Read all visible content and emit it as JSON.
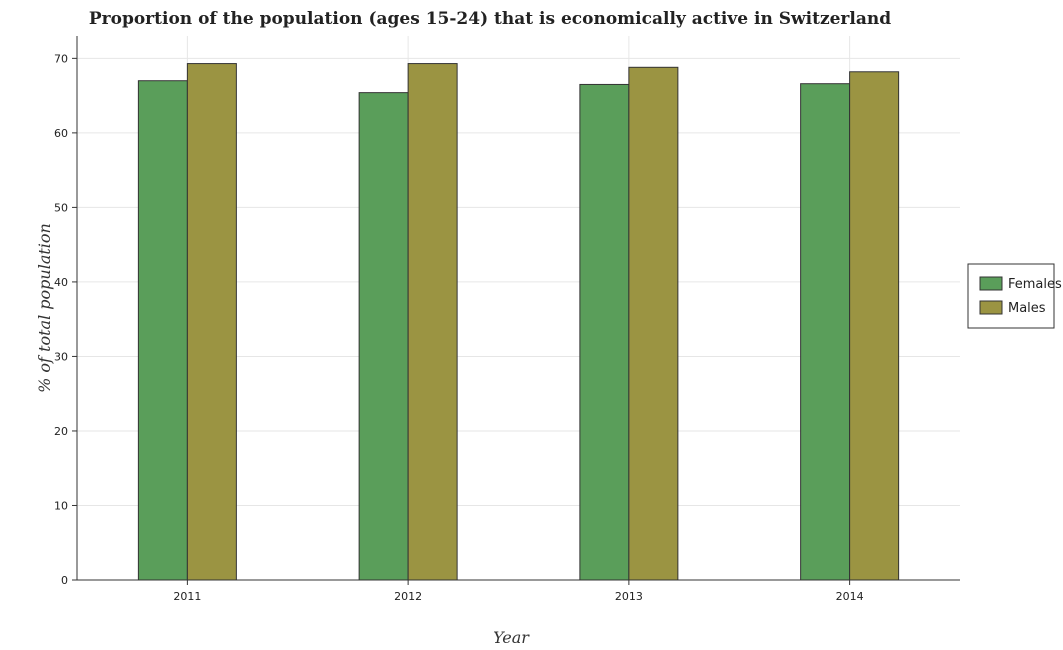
{
  "colors": {
    "females": "#5a9e5a",
    "males": "#9b9442"
  },
  "chart_data": {
    "type": "bar",
    "title": "Proportion of the population (ages 15-24) that is economically active in Switzerland",
    "xlabel": "Year",
    "ylabel": "% of total population",
    "categories": [
      "2011",
      "2012",
      "2013",
      "2014"
    ],
    "series": [
      {
        "name": "Females",
        "values": [
          67.0,
          65.4,
          66.5,
          66.6
        ]
      },
      {
        "name": "Males",
        "values": [
          69.3,
          69.3,
          68.8,
          68.2
        ]
      }
    ],
    "ylim": [
      0,
      73
    ],
    "yticks": [
      0,
      10,
      20,
      30,
      40,
      50,
      60,
      70
    ],
    "grid": true,
    "legend_position": "right"
  }
}
